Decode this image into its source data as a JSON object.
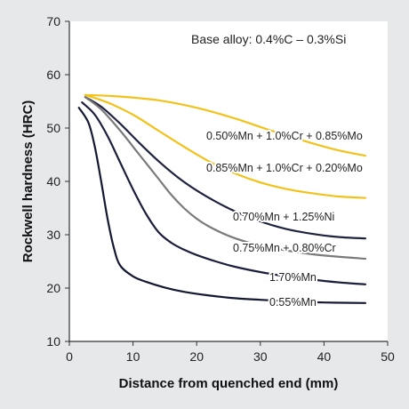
{
  "chart_data": {
    "type": "line",
    "title": "",
    "annotation": "Base alloy: 0.4%C – 0.3%Si",
    "xlabel": "Distance from quenched end (mm)",
    "ylabel": "Rockwell hardness (HRC)",
    "xlim": [
      0,
      50
    ],
    "ylim": [
      10,
      70
    ],
    "xticks": [
      0,
      10,
      20,
      30,
      40,
      50
    ],
    "yticks": [
      10,
      20,
      30,
      40,
      50,
      60,
      70
    ],
    "grid": false,
    "series": [
      {
        "name": "0.50%Mn + 1.0%Cr + 0.85%Mo",
        "color": "#f2c21b",
        "x": [
          2.5,
          8,
          14,
          20,
          26,
          32,
          38,
          42,
          46.5
        ],
        "y": [
          56.2,
          55.9,
          55.2,
          53.8,
          51.8,
          49.4,
          47.2,
          45.9,
          44.8
        ]
      },
      {
        "name": "0.85%Mn + 1.0%Cr + 0.20%Mo",
        "color": "#f2c21b",
        "x": [
          2.5,
          6,
          10,
          14,
          18,
          22,
          26,
          30,
          34,
          38,
          42,
          46.5
        ],
        "y": [
          56.2,
          54.8,
          52.5,
          49.5,
          46.5,
          43.7,
          41.5,
          39.8,
          38.6,
          37.8,
          37.2,
          36.9
        ]
      },
      {
        "name": "0.70%Mn + 1.25%Ni",
        "color": "#1f2340",
        "x": [
          2.5,
          5,
          8,
          11,
          14,
          17,
          20,
          23,
          26,
          30,
          34,
          38,
          42,
          46.5
        ],
        "y": [
          55.8,
          54.0,
          50.8,
          47.2,
          43.8,
          40.8,
          38.3,
          36.2,
          34.4,
          32.5,
          31.1,
          30.2,
          29.6,
          29.3
        ]
      },
      {
        "name": "0.75%Mn + 0.80%Cr",
        "color": "#7a7a7a",
        "x": [
          2.5,
          5,
          8,
          11,
          14,
          16,
          18,
          20,
          22,
          25,
          28,
          32,
          36,
          40,
          46.5
        ],
        "y": [
          55.8,
          53.5,
          49.5,
          45.0,
          40.5,
          37.5,
          35.0,
          33.0,
          31.5,
          29.8,
          28.6,
          27.5,
          26.7,
          26.1,
          25.5
        ]
      },
      {
        "name": "1.70%Mn",
        "color": "#1b1f3d",
        "x": [
          2,
          4,
          6,
          8,
          10,
          12,
          14,
          16,
          18,
          20,
          23,
          26,
          30,
          34,
          38,
          42,
          46.5
        ],
        "y": [
          54.8,
          52.5,
          48.5,
          43.5,
          38.5,
          34.0,
          30.5,
          28.5,
          27.2,
          26.2,
          25.0,
          24.0,
          23.0,
          22.2,
          21.6,
          21.1,
          20.7
        ]
      },
      {
        "name": "0.55%Mn",
        "color": "#141833",
        "x": [
          1.5,
          3,
          4,
          5,
          6,
          7,
          8,
          10,
          12,
          15,
          18,
          22,
          26,
          30,
          35,
          40,
          46.5
        ],
        "y": [
          53.8,
          51.0,
          46.5,
          40.0,
          33.0,
          27.5,
          24.2,
          22.2,
          21.2,
          20.1,
          19.3,
          18.6,
          18.1,
          17.8,
          17.5,
          17.3,
          17.2
        ]
      }
    ]
  }
}
